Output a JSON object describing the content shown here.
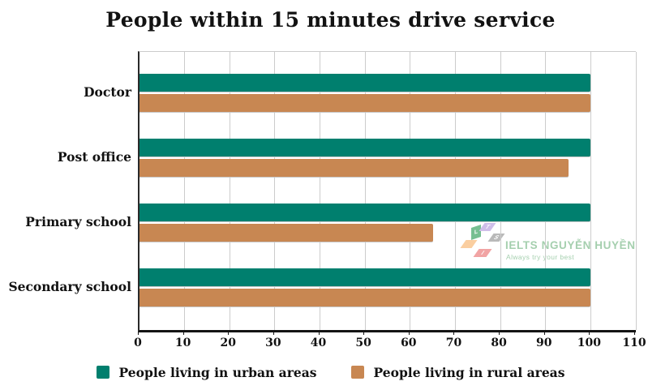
{
  "chart_data": {
    "type": "bar",
    "orientation": "horizontal",
    "title": "People within 15 minutes drive service",
    "categories": [
      "Doctor",
      "Post office",
      "Primary school",
      "Secondary school"
    ],
    "series": [
      {
        "name": "People living in urban areas",
        "color": "#007F6E",
        "values": [
          100,
          100,
          100,
          100
        ]
      },
      {
        "name": "People living in rural areas",
        "color": "#C88752",
        "values": [
          100,
          95,
          65,
          100
        ]
      }
    ],
    "xlabel": "",
    "ylabel": "",
    "xlim": [
      0,
      110
    ],
    "xticks": [
      0,
      10,
      20,
      30,
      40,
      50,
      60,
      70,
      80,
      90,
      100,
      110
    ],
    "grid": "vertical-only",
    "gridline_color": "#cccccc",
    "legend_position": "bottom"
  },
  "watermark": {
    "brand": "IELTS NGUYỄN HUYỀN",
    "tagline": "Always try your best",
    "text_color": "#8FC49B",
    "logo_shapes": [
      {
        "color": "#56B077",
        "letter": "L"
      },
      {
        "color": "#C4AEE4",
        "letter": "T"
      },
      {
        "color": "#A8A8A8",
        "letter": "S"
      },
      {
        "color": "#F9C389",
        "letter": ""
      },
      {
        "color": "#EE8E8E",
        "letter": "I"
      }
    ]
  }
}
